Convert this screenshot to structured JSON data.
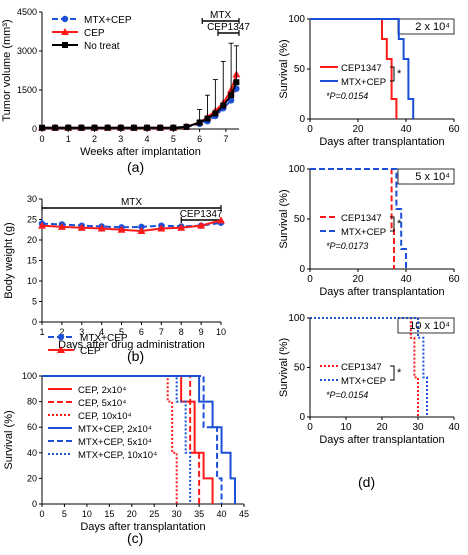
{
  "colors": {
    "red": "#ff1a1a",
    "blue": "#1a4fd6",
    "black": "#000000"
  },
  "chart_data": [
    {
      "panel": "a",
      "type": "line",
      "xlabel": "Weeks after implantation",
      "ylabel": "Tumor volume (mm³)",
      "xlim": [
        0,
        7.5
      ],
      "ylim": [
        0,
        4500
      ],
      "xticks": [
        0,
        1,
        2,
        3,
        4,
        5,
        6,
        7
      ],
      "yticks": [
        0,
        1500,
        3000,
        4500
      ],
      "ytick_labels": [
        "0",
        "1500",
        "3000",
        "4500"
      ],
      "bars": [
        {
          "label": "MTX",
          "x0": 6.1,
          "x1": 7.5
        },
        {
          "label": "CEP1347",
          "x0": 6.7,
          "x1": 7.5
        }
      ],
      "legend": [
        "MTX+CEP",
        "CEP",
        "No treat"
      ],
      "series": [
        {
          "name": "MTX+CEP",
          "color": "#1a4fd6",
          "dash": "6,3",
          "marker": "circle",
          "x": [
            0,
            0.5,
            1,
            1.5,
            2,
            2.5,
            3,
            3.5,
            4,
            4.5,
            5,
            5.5,
            6,
            6.3,
            6.6,
            6.9,
            7.2,
            7.4
          ],
          "y": [
            50,
            50,
            50,
            50,
            50,
            50,
            50,
            50,
            50,
            50,
            50,
            80,
            200,
            300,
            500,
            800,
            1100,
            1550
          ]
        },
        {
          "name": "CEP",
          "color": "#ff1a1a",
          "dash": "",
          "marker": "triangle",
          "x": [
            0,
            0.5,
            1,
            1.5,
            2,
            2.5,
            3,
            3.5,
            4,
            4.5,
            5,
            5.5,
            6,
            6.3,
            6.6,
            6.9,
            7.2,
            7.4
          ],
          "y": [
            50,
            50,
            50,
            50,
            50,
            50,
            50,
            50,
            50,
            50,
            50,
            80,
            250,
            450,
            700,
            1000,
            1500,
            2100
          ]
        },
        {
          "name": "No treat",
          "color": "#000000",
          "dash": "",
          "marker": "square",
          "x": [
            0,
            0.5,
            1,
            1.5,
            2,
            2.5,
            3,
            3.5,
            4,
            4.5,
            5,
            5.5,
            6,
            6.3,
            6.6,
            6.9,
            7.2,
            7.4
          ],
          "y": [
            50,
            50,
            50,
            50,
            50,
            50,
            50,
            50,
            50,
            50,
            50,
            80,
            250,
            400,
            600,
            900,
            1300,
            1800
          ],
          "err": [
            0,
            0,
            0,
            0,
            0,
            0,
            0,
            0,
            0,
            0,
            0,
            100,
            500,
            900,
            1300,
            1700,
            2000,
            1400
          ]
        }
      ]
    },
    {
      "panel": "b",
      "type": "line",
      "xlabel": "Days after drug administration",
      "ylabel": "Body weight (g)",
      "xlim": [
        1,
        10
      ],
      "ylim": [
        0,
        30
      ],
      "xticks": [
        1,
        2,
        3,
        4,
        5,
        6,
        7,
        8,
        9,
        10
      ],
      "yticks": [
        0,
        5,
        10,
        15,
        20,
        25,
        30
      ],
      "bars": [
        {
          "label": "MTX",
          "x0": 1,
          "x1": 10
        },
        {
          "label": "CEP1347",
          "x0": 8,
          "x1": 10
        }
      ],
      "legend": [
        "MTX+CEP",
        "CEP"
      ],
      "series": [
        {
          "name": "MTX+CEP",
          "color": "#1a4fd6",
          "dash": "6,3",
          "marker": "circle",
          "x": [
            1,
            2,
            3,
            4,
            5,
            6,
            7,
            8,
            9,
            10
          ],
          "y": [
            24,
            23.8,
            23.5,
            23.3,
            23.1,
            23.2,
            23.5,
            23.3,
            23.5,
            24.2
          ]
        },
        {
          "name": "CEP",
          "color": "#ff1a1a",
          "dash": "",
          "marker": "triangle",
          "x": [
            1,
            2,
            3,
            4,
            5,
            6,
            7,
            8,
            9,
            10
          ],
          "y": [
            23.5,
            23.2,
            23,
            22.8,
            22.5,
            22.2,
            22.8,
            23,
            23.5,
            24.8
          ]
        }
      ]
    },
    {
      "panel": "c",
      "type": "line",
      "xlabel": "Days after transplantation",
      "ylabel": "Survival (%)",
      "xlim": [
        0,
        45
      ],
      "ylim": [
        0,
        100
      ],
      "xticks": [
        0,
        5,
        10,
        15,
        20,
        25,
        30,
        35,
        40,
        45
      ],
      "yticks": [
        0,
        20,
        40,
        60,
        80,
        100
      ],
      "legend": [
        "CEP, 2x10⁴",
        "CEP, 5x10⁴",
        "CEP, 10x10⁴",
        "MTX+CEP, 2x10⁴",
        "MTX+CEP, 5x10⁴",
        "MTX+CEP, 10x10⁴"
      ],
      "series": [
        {
          "name": "CEP, 2x10⁴",
          "color": "#ff1a1a",
          "dash": "",
          "x": [
            0,
            31,
            31,
            34,
            34,
            36,
            36,
            38,
            38
          ],
          "y": [
            100,
            100,
            80,
            80,
            40,
            40,
            20,
            20,
            0
          ]
        },
        {
          "name": "CEP, 5x10⁴",
          "color": "#ff1a1a",
          "dash": "6,3",
          "x": [
            0,
            33,
            33,
            35,
            35
          ],
          "y": [
            100,
            100,
            40,
            40,
            0
          ]
        },
        {
          "name": "CEP, 10x10⁴",
          "color": "#ff1a1a",
          "dash": "2,2",
          "x": [
            0,
            28,
            28,
            29,
            29,
            30,
            30
          ],
          "y": [
            100,
            100,
            80,
            80,
            40,
            40,
            0
          ]
        },
        {
          "name": "MTX+CEP, 2x10⁴",
          "color": "#1a4fd6",
          "dash": "",
          "x": [
            0,
            35,
            35,
            38,
            38,
            40,
            40,
            42,
            42,
            43,
            43
          ],
          "y": [
            100,
            100,
            80,
            80,
            60,
            60,
            40,
            40,
            20,
            20,
            0
          ]
        },
        {
          "name": "MTX+CEP, 5x10⁴",
          "color": "#1a4fd6",
          "dash": "6,3",
          "x": [
            0,
            36,
            36,
            39,
            39,
            40,
            40
          ],
          "y": [
            100,
            100,
            60,
            60,
            20,
            20,
            0
          ]
        },
        {
          "name": "MTX+CEP, 10x10⁴",
          "color": "#1a4fd6",
          "dash": "2,2",
          "x": [
            0,
            30,
            30,
            32,
            32,
            33,
            33
          ],
          "y": [
            100,
            100,
            80,
            80,
            40,
            40,
            0
          ]
        }
      ]
    },
    {
      "panel": "d1",
      "type": "line",
      "title": "2 x 10⁴",
      "xlabel": "Days after transplantation",
      "ylabel": "Survival (%)",
      "xlim": [
        0,
        60
      ],
      "ylim": [
        0,
        100
      ],
      "xticks": [
        0,
        20,
        40,
        60
      ],
      "yticks": [
        0,
        50,
        100
      ],
      "legend": [
        "CEP1347",
        "MTX+CEP"
      ],
      "significance": "*",
      "pvalue": "*P=0.0154",
      "series": [
        {
          "name": "CEP1347",
          "color": "#ff1a1a",
          "dash": "",
          "x": [
            0,
            30,
            30,
            32,
            32,
            34,
            34,
            36,
            36
          ],
          "y": [
            100,
            100,
            80,
            80,
            60,
            60,
            20,
            20,
            0
          ]
        },
        {
          "name": "MTX+CEP",
          "color": "#1a4fd6",
          "dash": "",
          "x": [
            0,
            37,
            37,
            39,
            39,
            41,
            41,
            43,
            43
          ],
          "y": [
            100,
            100,
            80,
            80,
            60,
            60,
            20,
            20,
            0
          ]
        }
      ]
    },
    {
      "panel": "d2",
      "type": "line",
      "title": "5 x 10⁴",
      "xlabel": "Days after transplantation",
      "ylabel": "Survival (%)",
      "xlim": [
        0,
        60
      ],
      "ylim": [
        0,
        100
      ],
      "xticks": [
        0,
        20,
        40,
        60
      ],
      "yticks": [
        0,
        50,
        100
      ],
      "legend": [
        "CEP1347",
        "MTX+CEP"
      ],
      "significance": "*",
      "pvalue": "*P=0.0173",
      "series": [
        {
          "name": "CEP1347",
          "color": "#ff1a1a",
          "dash": "6,3",
          "x": [
            0,
            34,
            34,
            35,
            35
          ],
          "y": [
            100,
            100,
            40,
            40,
            0
          ]
        },
        {
          "name": "MTX+CEP",
          "color": "#1a4fd6",
          "dash": "6,3",
          "x": [
            0,
            36,
            36,
            38,
            38,
            40,
            40
          ],
          "y": [
            100,
            100,
            60,
            60,
            20,
            20,
            0
          ]
        }
      ]
    },
    {
      "panel": "d3",
      "type": "line",
      "title": "10 x 10⁴",
      "xlabel": "Days after transplantation",
      "ylabel": "Survival (%)",
      "xlim": [
        0,
        40
      ],
      "ylim": [
        0,
        100
      ],
      "xticks": [
        0,
        10,
        20,
        30,
        40
      ],
      "yticks": [
        0,
        50,
        100
      ],
      "legend": [
        "CEP1347",
        "MTX+CEP"
      ],
      "significance": "*",
      "pvalue": "*P=0.0154",
      "series": [
        {
          "name": "CEP1347",
          "color": "#ff1a1a",
          "dash": "2,2",
          "x": [
            0,
            28,
            28,
            29,
            29,
            30,
            30
          ],
          "y": [
            100,
            100,
            80,
            80,
            40,
            40,
            0
          ]
        },
        {
          "name": "MTX+CEP",
          "color": "#1a4fd6",
          "dash": "2,2",
          "x": [
            0,
            30,
            30,
            31.5,
            31.5,
            32.5,
            32.5
          ],
          "y": [
            100,
            100,
            80,
            80,
            40,
            40,
            0
          ]
        }
      ]
    }
  ],
  "panel_labels": {
    "a": "(a)",
    "b": "(b)",
    "c": "(c)",
    "d": "(d)"
  }
}
